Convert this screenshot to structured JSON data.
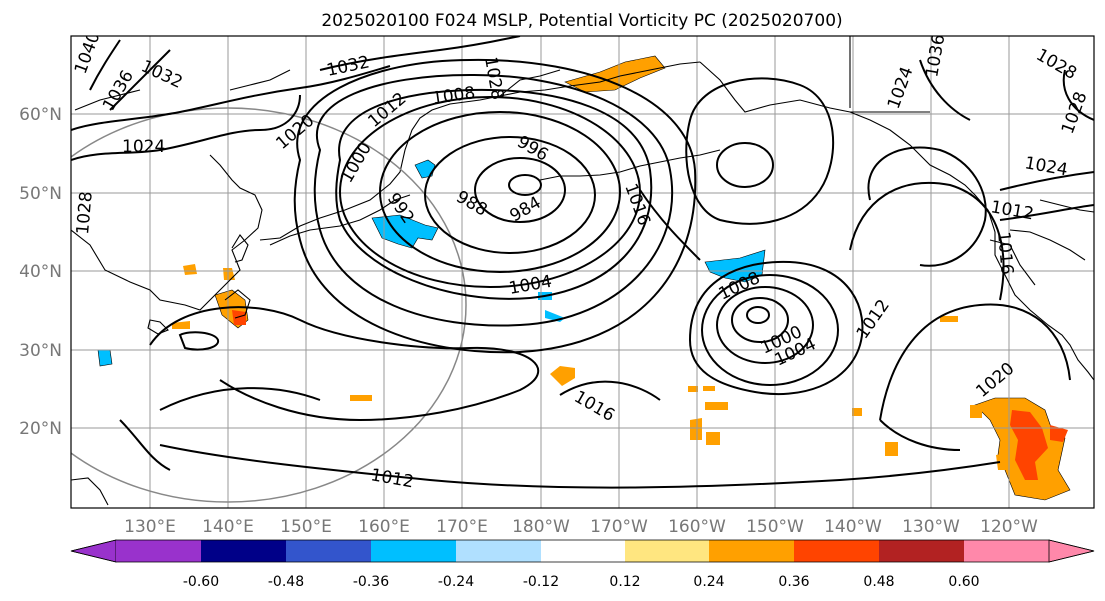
{
  "title": "2025020100 F024 MSLP, Potential Vorticity PC (2025020700)",
  "lat_labels": [
    "60°N",
    "50°N",
    "40°N",
    "30°N",
    "20°N"
  ],
  "lon_labels": [
    "130°E",
    "140°E",
    "150°E",
    "160°E",
    "170°E",
    "180°W",
    "170°W",
    "160°W",
    "150°W",
    "140°W",
    "130°W",
    "120°W"
  ],
  "isobar_labels": [
    "1040",
    "1036",
    "1032",
    "1032",
    "1028",
    "1024",
    "1028",
    "1020",
    "1012",
    "1008",
    "1000",
    "992",
    "996",
    "988",
    "984",
    "1004",
    "1016",
    "1008",
    "1000",
    "1004",
    "1012",
    "1016",
    "1012",
    "1020",
    "1036",
    "1024",
    "1028",
    "1024",
    "1028",
    "1012",
    "1016"
  ],
  "pressure_centers": [
    {
      "type": "low",
      "value": "984"
    },
    {
      "type": "low",
      "value": "1000"
    }
  ],
  "colorbar": {
    "ticks": [
      "-0.60",
      "-0.48",
      "-0.36",
      "-0.24",
      "-0.12",
      "0.12",
      "0.24",
      "0.36",
      "0.48",
      "0.60"
    ],
    "under_color": "#9932cc",
    "over_color": "#ff88aa",
    "colors": [
      "#000088",
      "#3355cc",
      "#00bfff",
      "#b0e0ff",
      "#ffffff",
      "#ffe680",
      "#ffa000",
      "#ff4400",
      "#b22222"
    ]
  },
  "pv_colors": {
    "positive_low": "#ffe680",
    "positive_mid": "#ffa000",
    "positive_high": "#ff4400",
    "negative": "#00bfff"
  }
}
